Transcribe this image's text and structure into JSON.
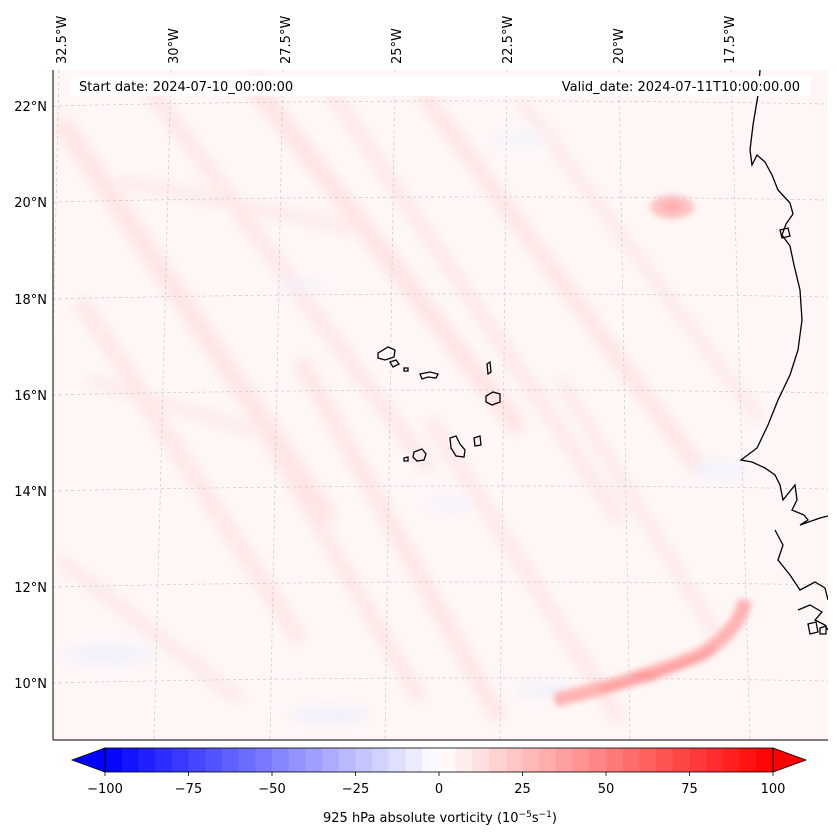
{
  "figure": {
    "start_date": "Start date: 2024-07-10_00:00:00",
    "valid_date": "Valid_date: 2024-07-11T10:00:00.00",
    "colorbar_label_prefix": "925 hPa absolute vorticity (10",
    "colorbar_label_exp1": "−5",
    "colorbar_label_mid": "s",
    "colorbar_label_exp2": "−1",
    "colorbar_label_suffix": ")"
  },
  "map": {
    "lon_labels": [
      "32.5°W",
      "30°W",
      "27.5°W",
      "25°W",
      "22.5°W",
      "20°W",
      "17.5°W"
    ],
    "lat_labels": [
      "22°N",
      "20°N",
      "18°N",
      "16°N",
      "14°N",
      "12°N",
      "10°N"
    ],
    "islands": [
      "Santo Antão",
      "São Vicente",
      "Santa Luzia",
      "São Nicolau",
      "Sal",
      "Boa Vista",
      "Maio",
      "Santiago",
      "Fogo",
      "Brava"
    ],
    "colors": {
      "background": "#fff6f6",
      "coast": "#000000",
      "gridline": "#bbbbbb"
    }
  },
  "colorbar": {
    "ticks": [
      "−100",
      "−75",
      "−50",
      "−25",
      "0",
      "25",
      "50",
      "75",
      "100"
    ],
    "range": [
      -100,
      100
    ],
    "step": 5,
    "colors": {
      "min": "#0000ff",
      "mid": "#ffffff",
      "max": "#ff0000"
    }
  },
  "chart_data": {
    "type": "heatmap",
    "title": "925 hPa absolute vorticity",
    "variable": "925 hPa absolute vorticity",
    "units": "10^-5 s^-1",
    "start_date": "2024-07-10_00:00:00",
    "valid_date": "2024-07-11T10:00:00.00",
    "lon_range": [
      -33,
      -15.5
    ],
    "lat_range": [
      9,
      22.8
    ],
    "color_range": [
      -100,
      100
    ],
    "features": [
      {
        "name": "coastal-vorticity-max",
        "lat": 19.9,
        "lon": -20.0,
        "value": 30
      },
      {
        "name": "southern-band-max",
        "lat": 10.2,
        "lon": -21.0,
        "value": 45
      },
      {
        "name": "southern-band-east",
        "lat": 11.3,
        "lon": -18.8,
        "value": 40
      }
    ]
  }
}
